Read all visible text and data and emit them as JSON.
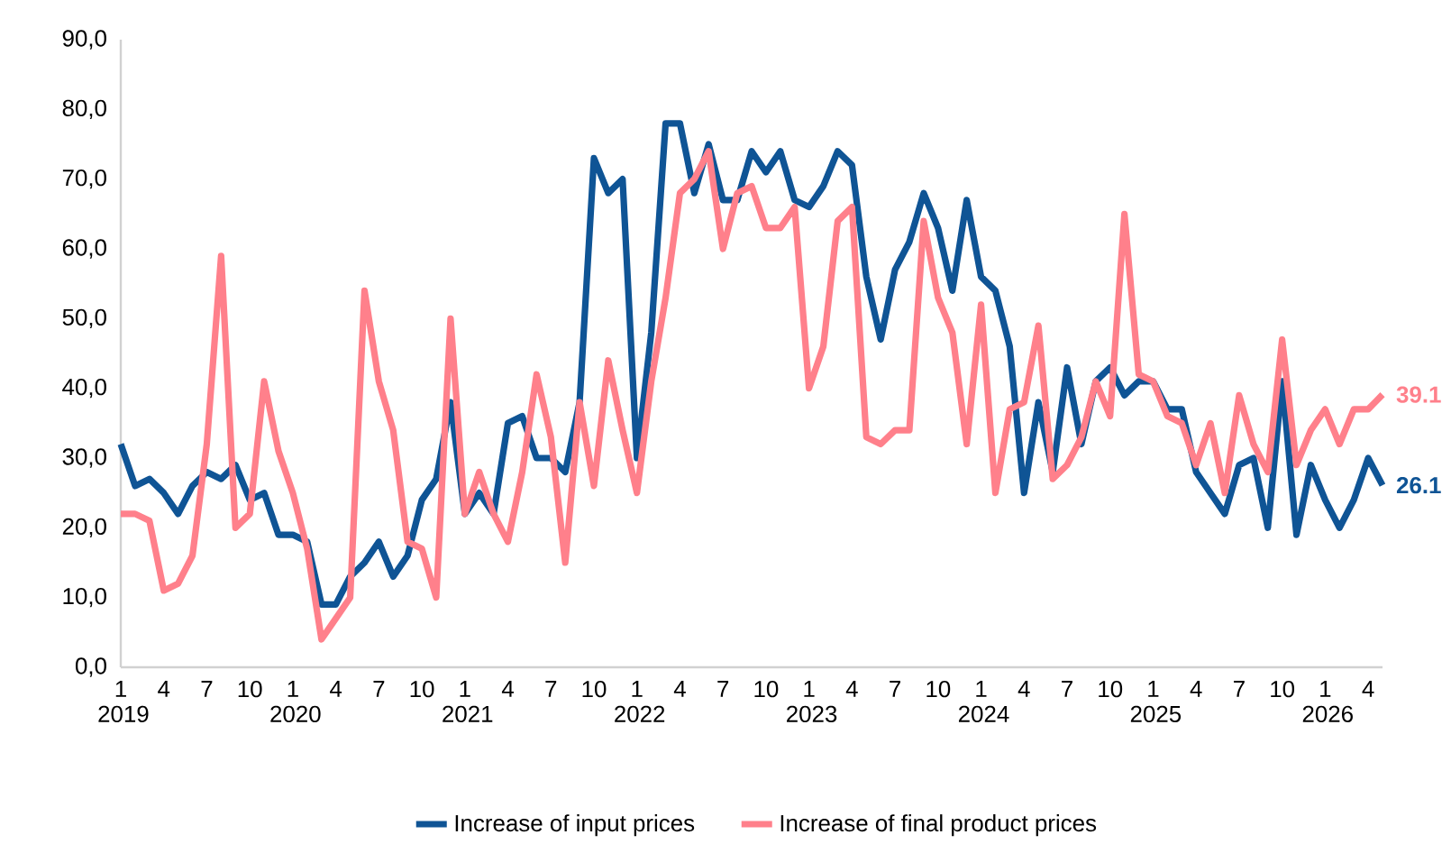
{
  "chart_data": {
    "type": "line",
    "x": [
      "2019-01",
      "2019-02",
      "2019-03",
      "2019-04",
      "2019-05",
      "2019-06",
      "2019-07",
      "2019-08",
      "2019-09",
      "2019-10",
      "2019-11",
      "2019-12",
      "2020-01",
      "2020-02",
      "2020-03",
      "2020-04",
      "2020-05",
      "2020-06",
      "2020-07",
      "2020-08",
      "2020-09",
      "2020-10",
      "2020-11",
      "2020-12",
      "2021-01",
      "2021-02",
      "2021-03",
      "2021-04",
      "2021-05",
      "2021-06",
      "2021-07",
      "2021-08",
      "2021-09",
      "2021-10",
      "2021-11",
      "2021-12",
      "2022-01",
      "2022-02",
      "2022-03",
      "2022-04",
      "2022-05",
      "2022-06",
      "2022-07",
      "2022-08",
      "2022-09",
      "2022-10",
      "2022-11",
      "2022-12",
      "2023-01",
      "2023-02",
      "2023-03",
      "2023-04",
      "2023-05",
      "2023-06",
      "2023-07",
      "2023-08",
      "2023-09",
      "2023-10",
      "2023-11",
      "2023-12",
      "2024-01",
      "2024-02",
      "2024-03",
      "2024-04",
      "2024-05",
      "2024-06",
      "2024-07",
      "2024-08",
      "2024-09",
      "2024-10",
      "2024-11",
      "2024-12",
      "2025-01",
      "2025-02",
      "2025-03",
      "2025-04",
      "2025-05",
      "2025-06",
      "2025-07",
      "2025-08",
      "2025-09",
      "2025-10",
      "2025-11",
      "2025-12",
      "2026-01",
      "2026-02",
      "2026-03",
      "2026-04",
      "2026-05"
    ],
    "series": [
      {
        "name": "Increase of input prices",
        "color": "#0f5495",
        "values": [
          32,
          26,
          27,
          25,
          22,
          26,
          28,
          27,
          29,
          24,
          25,
          19,
          19,
          18,
          9,
          9,
          13,
          15,
          18,
          13,
          16,
          24,
          27,
          38,
          22,
          25,
          22,
          35,
          36,
          30,
          30,
          28,
          38,
          73,
          68,
          70,
          30,
          48,
          78,
          78,
          68,
          75,
          67,
          67,
          74,
          71,
          74,
          67,
          66,
          69,
          74,
          72,
          56,
          47,
          57,
          61,
          68,
          63,
          54,
          67,
          56,
          54,
          46,
          25,
          38,
          28,
          43,
          32,
          41,
          43,
          39,
          41,
          41,
          37,
          37,
          28,
          25,
          22,
          29,
          30,
          20,
          41,
          19,
          29,
          24,
          20,
          24,
          30,
          26.1
        ],
        "value_labels": [
          null,
          null,
          null,
          null,
          null,
          null,
          null,
          null,
          null,
          null,
          null,
          null,
          null,
          null,
          null,
          null,
          null,
          null,
          null,
          null,
          null,
          null,
          null,
          null,
          null,
          null,
          null,
          null,
          null,
          null,
          null,
          null,
          null,
          null,
          null,
          null,
          null,
          null,
          null,
          null,
          null,
          null,
          null,
          null,
          null,
          null,
          null,
          null,
          null,
          null,
          null,
          null,
          null,
          null,
          null,
          null,
          null,
          null,
          null,
          null,
          null,
          null,
          null,
          null,
          null,
          null,
          null,
          null,
          null,
          null,
          null,
          null,
          null,
          null,
          null,
          null,
          null,
          null,
          null,
          null,
          null,
          null,
          null,
          null,
          null,
          null,
          null,
          null,
          "26.1"
        ]
      },
      {
        "name": "Increase of final product prices",
        "color": "#ff808b",
        "values": [
          22,
          22,
          21,
          11,
          12,
          16,
          32,
          59,
          20,
          22,
          41,
          31,
          25,
          17,
          4,
          7,
          10,
          54,
          41,
          34,
          18,
          17,
          10,
          50,
          22,
          28,
          22,
          18,
          28,
          42,
          33,
          15,
          38,
          26,
          44,
          34,
          25,
          41,
          53,
          68,
          70,
          74,
          60,
          68,
          69,
          63,
          63,
          66,
          40,
          46,
          64,
          66,
          33,
          32,
          34,
          34,
          64,
          53,
          48,
          32,
          52,
          25,
          37,
          38,
          49,
          27,
          29,
          33,
          41,
          36,
          65,
          42,
          41,
          36,
          35,
          29,
          35,
          25,
          39,
          32,
          28,
          47,
          29,
          34,
          37,
          32,
          37,
          37,
          39.1
        ],
        "value_labels": [
          null,
          null,
          null,
          null,
          null,
          null,
          null,
          null,
          null,
          null,
          null,
          null,
          null,
          null,
          null,
          null,
          null,
          null,
          null,
          null,
          null,
          null,
          null,
          null,
          null,
          null,
          null,
          null,
          null,
          null,
          null,
          null,
          null,
          null,
          null,
          null,
          null,
          null,
          null,
          null,
          null,
          null,
          null,
          null,
          null,
          null,
          null,
          null,
          null,
          null,
          null,
          null,
          null,
          null,
          null,
          null,
          null,
          null,
          null,
          null,
          null,
          null,
          null,
          null,
          null,
          null,
          null,
          null,
          null,
          null,
          null,
          null,
          null,
          null,
          null,
          null,
          null,
          null,
          null,
          null,
          null,
          null,
          null,
          null,
          null,
          null,
          null,
          null,
          "39.1"
        ]
      }
    ],
    "xlim": [
      "2019-01",
      "2026-05"
    ],
    "xticks": [
      {
        "value": "2019-01",
        "label": "1 2019"
      },
      {
        "value": "2019-04",
        "label": "4"
      },
      {
        "value": "2019-07",
        "label": "7"
      },
      {
        "value": "2019-10",
        "label": "10"
      },
      {
        "value": "2020-01",
        "label": "1 2020"
      },
      {
        "value": "2020-04",
        "label": "4"
      },
      {
        "value": "2020-07",
        "label": "7"
      },
      {
        "value": "2020-10",
        "label": "10"
      },
      {
        "value": "2021-01",
        "label": "1 2021"
      },
      {
        "value": "2021-04",
        "label": "4"
      },
      {
        "value": "2021-07",
        "label": "7"
      },
      {
        "value": "2021-10",
        "label": "10"
      },
      {
        "value": "2022-01",
        "label": "1 2022"
      },
      {
        "value": "2022-04",
        "label": "4"
      },
      {
        "value": "2022-07",
        "label": "7"
      },
      {
        "value": "2022-10",
        "label": "10"
      },
      {
        "value": "2023-01",
        "label": "1 2023"
      },
      {
        "value": "2023-04",
        "label": "4"
      },
      {
        "value": "2023-07",
        "label": "7"
      },
      {
        "value": "2023-10",
        "label": "10"
      },
      {
        "value": "2024-01",
        "label": "1 2024"
      },
      {
        "value": "2024-04",
        "label": "4"
      },
      {
        "value": "2024-07",
        "label": "7"
      },
      {
        "value": "2024-10",
        "label": "10"
      },
      {
        "value": "2025-01",
        "label": "1 2025"
      },
      {
        "value": "2025-04",
        "label": "4"
      },
      {
        "value": "2025-07",
        "label": "7"
      },
      {
        "value": "2025-10",
        "label": "10"
      },
      {
        "value": "2026-01",
        "label": "1 2026"
      },
      {
        "value": "2026-04",
        "label": "4"
      }
    ],
    "ylim": [
      0,
      90
    ],
    "yticks": [
      {
        "value": 0,
        "label": "0,0"
      },
      {
        "value": 10,
        "label": "10,0"
      },
      {
        "value": 20,
        "label": "20,0"
      },
      {
        "value": 30,
        "label": "30,0"
      },
      {
        "value": 40,
        "label": "40,0"
      },
      {
        "value": 50,
        "label": "50,0"
      },
      {
        "value": 60,
        "label": "60,0"
      },
      {
        "value": 70,
        "label": "70,0"
      },
      {
        "value": 80,
        "label": "80,0"
      },
      {
        "value": 90,
        "label": "90,0"
      }
    ],
    "grid": false,
    "legend": "bottom",
    "line_style": "solid"
  }
}
